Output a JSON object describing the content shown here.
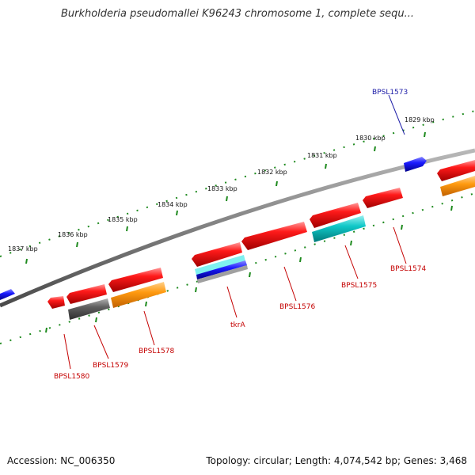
{
  "title": "Burkholderia pseudomallei K96243 chromosome 1, complete sequ...",
  "footer": {
    "accession": "Accession: NC_006350",
    "summary": "Topology: circular; Length: 4,074,542 bp; Genes: 3,468"
  },
  "colors": {
    "backbone": "#7a7a7a",
    "ticks": "#1e8a1e",
    "gene_red": "#e00000",
    "gene_blue": "#1010e0",
    "gene_gray": "#555555",
    "gene_orange": "#ff8c00",
    "gene_cyan": "#00b8b8",
    "label_red": "#c40000",
    "label_blue": "#1a1aa6"
  },
  "kbp_labels": [
    "1837 kbp",
    "1836 kbp",
    "1835 kbp",
    "1834 kbp",
    "1833 kbp",
    "1832 kbp",
    "1831 kbp",
    "1830 kbp",
    "1829 kbp"
  ],
  "gene_labels": [
    "BPSL1573",
    "BPSL1574",
    "BPSL1575",
    "BPSL1576",
    "tkrA",
    "BPSL1578",
    "BPSL1579",
    "BPSL1580"
  ]
}
